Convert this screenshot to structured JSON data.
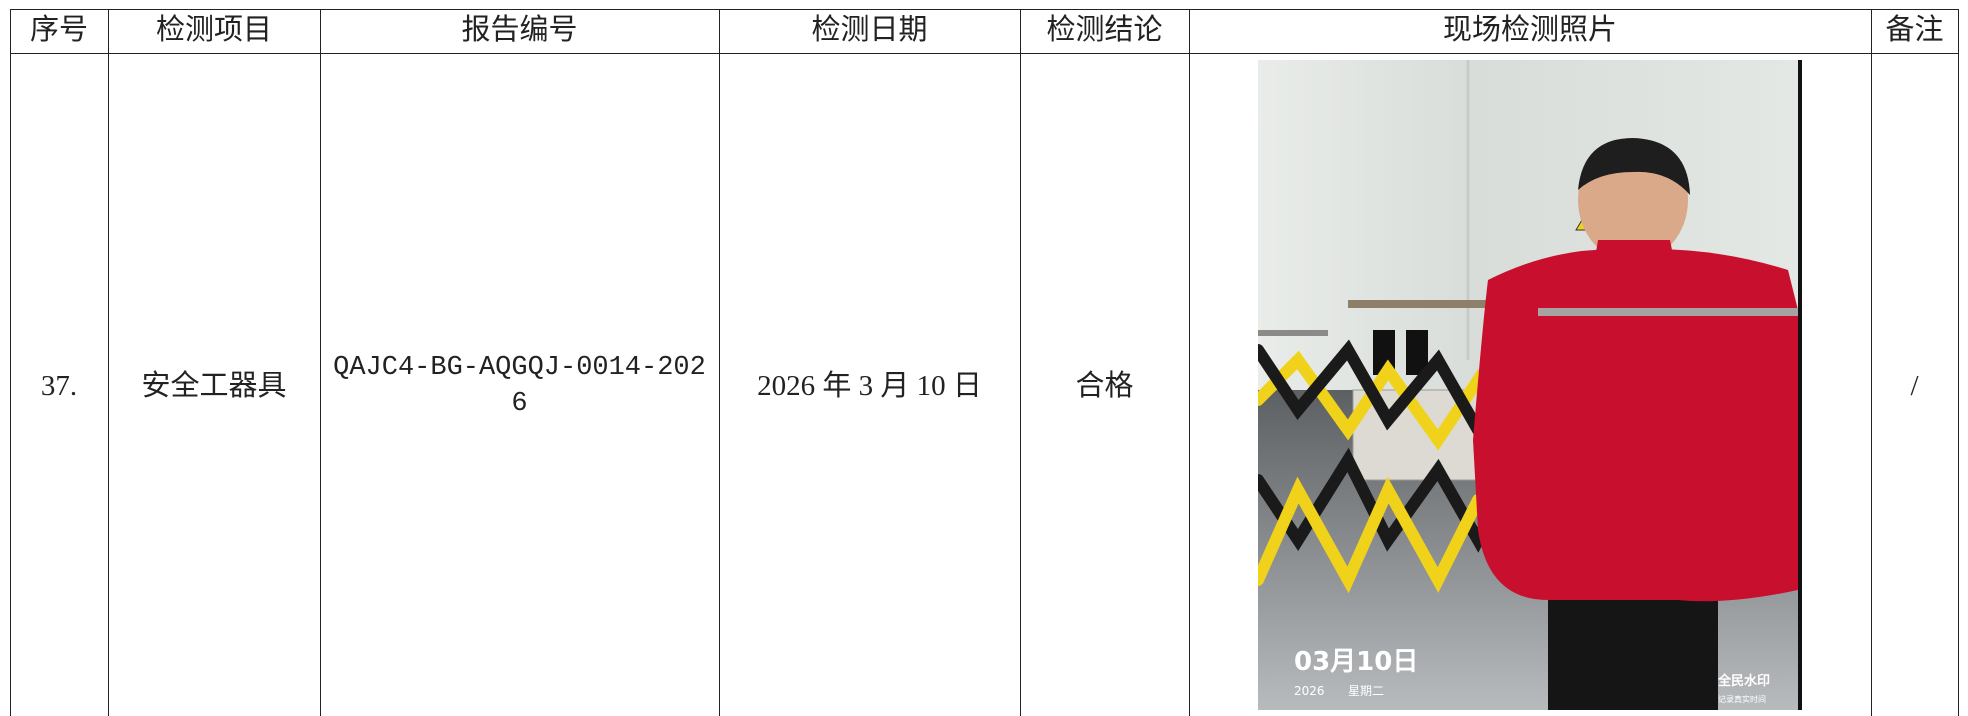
{
  "table": {
    "header": [
      "序号",
      "检测项目",
      "报告编号",
      "检测日期",
      "检测结论",
      "现场检测照片",
      "备注"
    ],
    "rows": [
      [
        "37.",
        "安全工器具",
        "QAJC4-BG-AQGQJ-0014-2026",
        "2026 年 3 月 10 日",
        "合格",
        "/"
      ]
    ]
  },
  "photo": {
    "date": "03月10日",
    "year": "2026",
    "weekday": "星期二",
    "brand": "全民水印",
    "sub": "记录真实时间"
  }
}
